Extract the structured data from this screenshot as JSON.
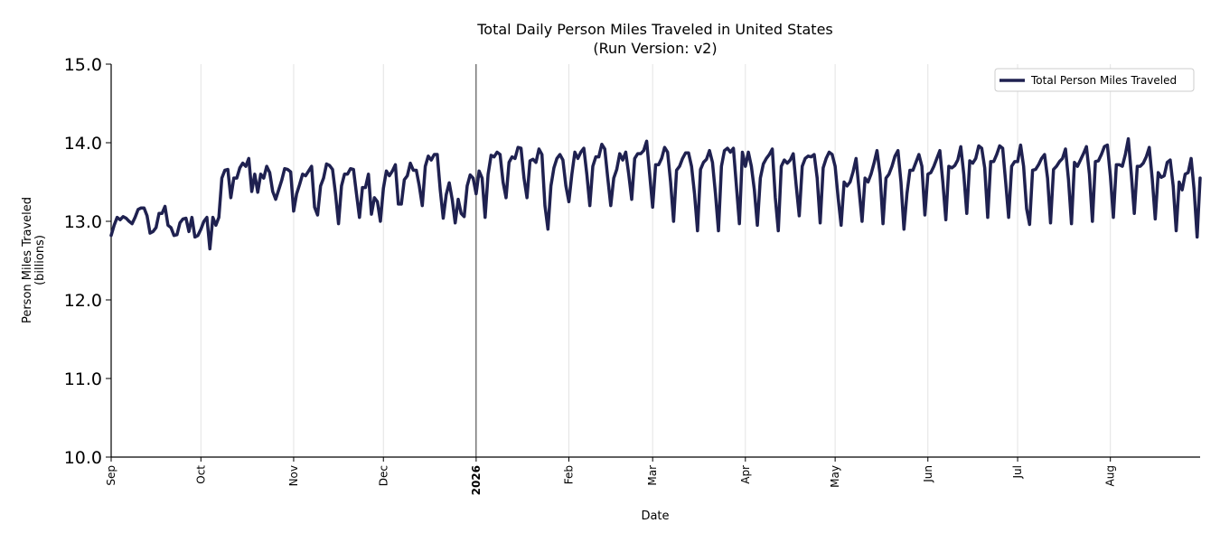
{
  "chart_data": {
    "type": "line",
    "title": "Total Daily Person Miles Traveled in United States",
    "subtitle": "(Run Version: v2)",
    "xlabel": "Date",
    "ylabel_line1": "Person Miles Traveled",
    "ylabel_line2": "(billions)",
    "ylim": [
      10.0,
      15.0
    ],
    "yticks": [
      "10.0",
      "11.0",
      "12.0",
      "13.0",
      "14.0",
      "15.0"
    ],
    "x_start_date": "2025-09-01",
    "x_end_date": "2026-08-31",
    "xticks": [
      {
        "label": "Sep",
        "date": "2025-09-01",
        "bold": false
      },
      {
        "label": "Oct",
        "date": "2025-10-01",
        "bold": false
      },
      {
        "label": "Nov",
        "date": "2025-11-01",
        "bold": false
      },
      {
        "label": "Dec",
        "date": "2025-12-01",
        "bold": false
      },
      {
        "label": "2026",
        "date": "2026-01-01",
        "bold": true
      },
      {
        "label": "Feb",
        "date": "2026-02-01",
        "bold": false
      },
      {
        "label": "Mar",
        "date": "2026-03-01",
        "bold": false
      },
      {
        "label": "Apr",
        "date": "2026-04-01",
        "bold": false
      },
      {
        "label": "May",
        "date": "2026-05-01",
        "bold": false
      },
      {
        "label": "Jun",
        "date": "2026-06-01",
        "bold": false
      },
      {
        "label": "Jul",
        "date": "2026-07-01",
        "bold": false
      },
      {
        "label": "Aug",
        "date": "2026-08-01",
        "bold": false
      }
    ],
    "year_marker_date": "2026-01-01",
    "grid": "vertical",
    "legend_position": "top-right",
    "series": [
      {
        "name": "Total Person Miles Traveled",
        "color": "#1f2150",
        "values": [
          12.82,
          12.95,
          13.05,
          13.02,
          13.06,
          13.04,
          13.0,
          12.97,
          13.05,
          13.15,
          13.17,
          13.17,
          13.07,
          12.85,
          12.87,
          12.92,
          13.1,
          13.1,
          13.19,
          12.95,
          12.92,
          12.82,
          12.83,
          12.98,
          13.03,
          13.04,
          12.87,
          13.05,
          12.8,
          12.82,
          12.9,
          13.0,
          13.05,
          12.65,
          13.05,
          12.95,
          13.05,
          13.55,
          13.65,
          13.66,
          13.3,
          13.55,
          13.55,
          13.68,
          13.74,
          13.7,
          13.8,
          13.38,
          13.6,
          13.37,
          13.6,
          13.55,
          13.7,
          13.62,
          13.38,
          13.28,
          13.4,
          13.52,
          13.67,
          13.66,
          13.63,
          13.13,
          13.35,
          13.47,
          13.6,
          13.58,
          13.64,
          13.7,
          13.18,
          13.08,
          13.45,
          13.55,
          13.73,
          13.71,
          13.66,
          13.35,
          12.97,
          13.45,
          13.6,
          13.6,
          13.67,
          13.66,
          13.35,
          13.05,
          13.43,
          13.43,
          13.6,
          13.09,
          13.3,
          13.25,
          13.0,
          13.42,
          13.64,
          13.58,
          13.64,
          13.72,
          13.22,
          13.22,
          13.53,
          13.58,
          13.74,
          13.65,
          13.65,
          13.45,
          13.2,
          13.7,
          13.83,
          13.78,
          13.85,
          13.85,
          13.4,
          13.04,
          13.34,
          13.49,
          13.28,
          12.98,
          13.28,
          13.1,
          13.06,
          13.45,
          13.59,
          13.55,
          13.35,
          13.64,
          13.55,
          13.05,
          13.6,
          13.84,
          13.82,
          13.88,
          13.85,
          13.5,
          13.3,
          13.75,
          13.82,
          13.8,
          13.94,
          13.93,
          13.55,
          13.3,
          13.77,
          13.79,
          13.75,
          13.92,
          13.85,
          13.2,
          12.9,
          13.45,
          13.68,
          13.8,
          13.85,
          13.78,
          13.45,
          13.25,
          13.6,
          13.88,
          13.8,
          13.88,
          13.93,
          13.6,
          13.2,
          13.7,
          13.82,
          13.82,
          13.98,
          13.92,
          13.55,
          13.2,
          13.55,
          13.66,
          13.86,
          13.78,
          13.88,
          13.6,
          13.28,
          13.8,
          13.86,
          13.86,
          13.9,
          14.02,
          13.6,
          13.18,
          13.72,
          13.72,
          13.8,
          13.94,
          13.88,
          13.5,
          13.0,
          13.65,
          13.7,
          13.8,
          13.87,
          13.87,
          13.7,
          13.35,
          12.88,
          13.66,
          13.75,
          13.79,
          13.9,
          13.75,
          13.35,
          12.88,
          13.7,
          13.9,
          13.93,
          13.88,
          13.93,
          13.45,
          12.97,
          13.88,
          13.7,
          13.88,
          13.7,
          13.4,
          12.95,
          13.55,
          13.73,
          13.8,
          13.85,
          13.92,
          13.3,
          12.88,
          13.7,
          13.78,
          13.74,
          13.78,
          13.86,
          13.45,
          13.07,
          13.7,
          13.8,
          13.83,
          13.82,
          13.85,
          13.55,
          12.98,
          13.68,
          13.8,
          13.88,
          13.85,
          13.7,
          13.3,
          12.95,
          13.5,
          13.45,
          13.5,
          13.63,
          13.8,
          13.4,
          13.0,
          13.55,
          13.5,
          13.6,
          13.74,
          13.9,
          13.6,
          12.97,
          13.55,
          13.6,
          13.7,
          13.83,
          13.9,
          13.5,
          12.9,
          13.35,
          13.65,
          13.65,
          13.75,
          13.85,
          13.7,
          13.08,
          13.6,
          13.62,
          13.7,
          13.8,
          13.9,
          13.5,
          13.02,
          13.7,
          13.68,
          13.71,
          13.78,
          13.95,
          13.6,
          13.1,
          13.77,
          13.74,
          13.8,
          13.96,
          13.93,
          13.68,
          13.05,
          13.76,
          13.76,
          13.85,
          13.96,
          13.93,
          13.5,
          13.05,
          13.7,
          13.76,
          13.76,
          13.97,
          13.7,
          13.16,
          12.96,
          13.65,
          13.66,
          13.72,
          13.8,
          13.85,
          13.55,
          12.98,
          13.66,
          13.7,
          13.76,
          13.8,
          13.92,
          13.53,
          12.97,
          13.75,
          13.7,
          13.78,
          13.86,
          13.95,
          13.6,
          13.0,
          13.76,
          13.77,
          13.85,
          13.95,
          13.97,
          13.58,
          13.05,
          13.72,
          13.72,
          13.7,
          13.85,
          14.05,
          13.6,
          13.1,
          13.7,
          13.7,
          13.74,
          13.82,
          13.94,
          13.54,
          13.03,
          13.62,
          13.56,
          13.58,
          13.75,
          13.78,
          13.45,
          12.88,
          13.5,
          13.4,
          13.6,
          13.62,
          13.8,
          13.4,
          12.8,
          13.55
        ]
      }
    ]
  }
}
